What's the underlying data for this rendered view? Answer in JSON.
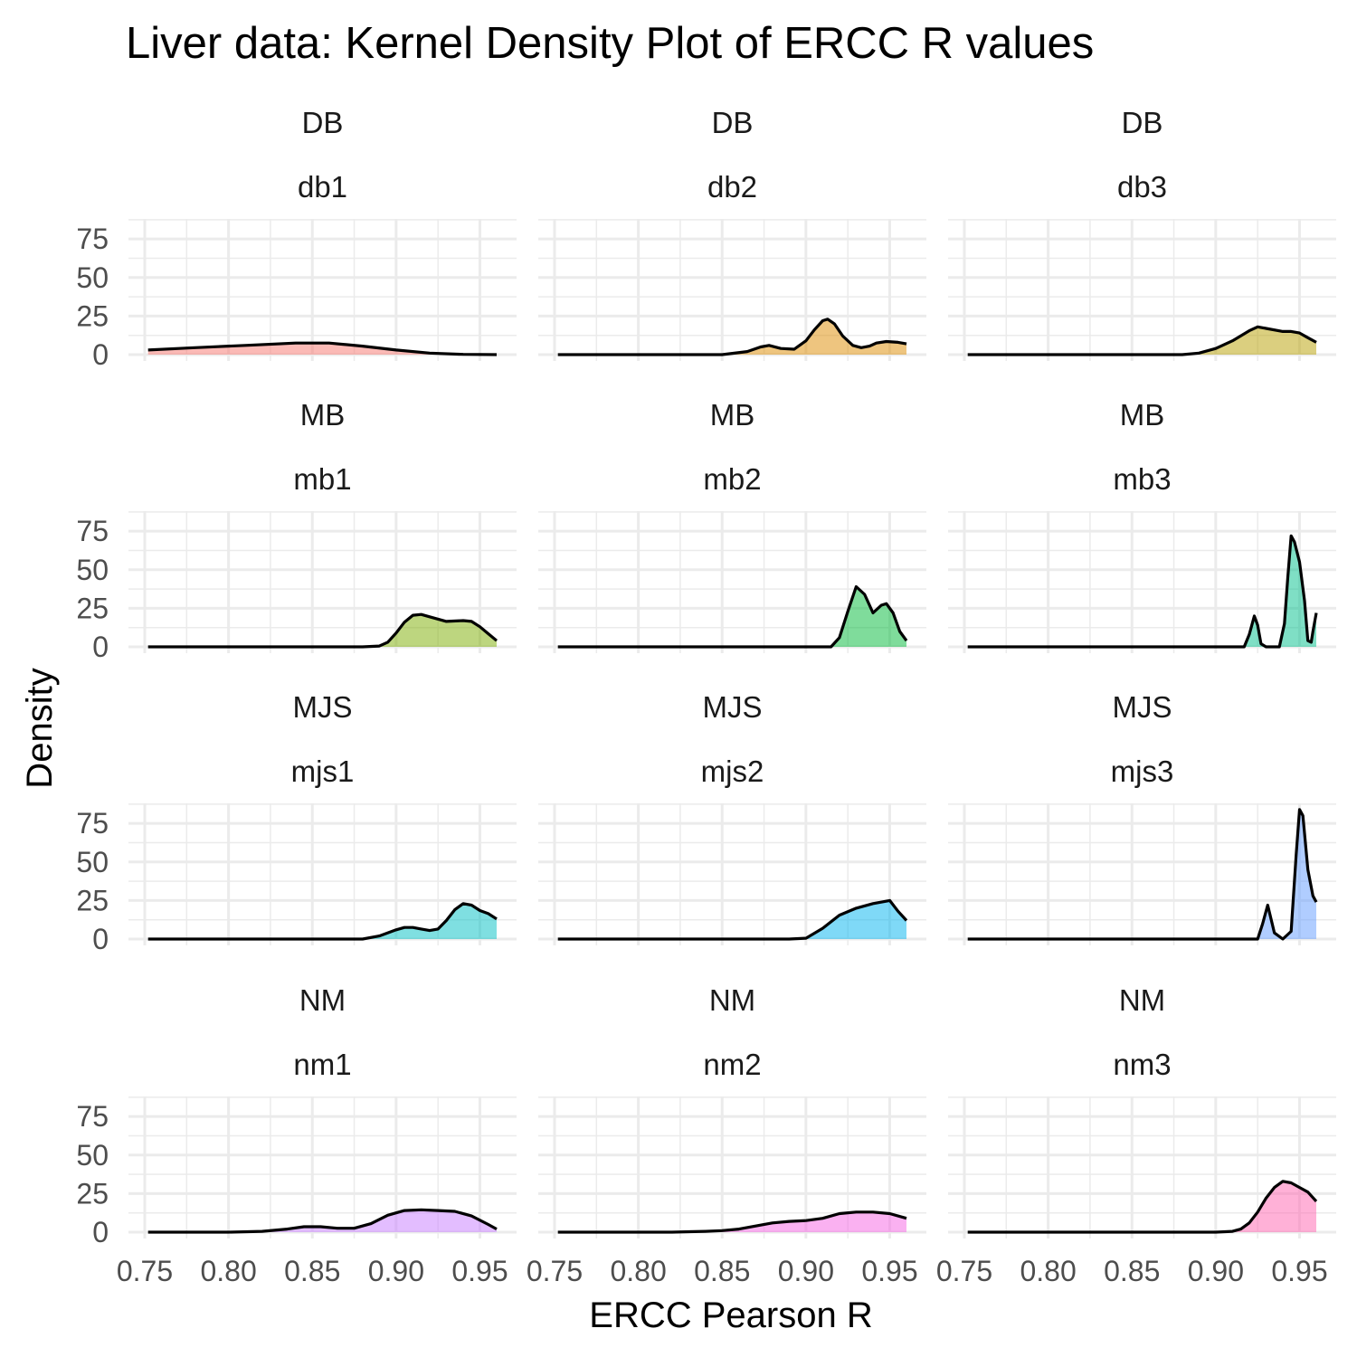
{
  "chart_data": {
    "type": "area",
    "title": "Liver data: Kernel Density Plot of ERCC R values",
    "xlabel": "ERCC Pearson R",
    "ylabel": "Density",
    "xlim": [
      0.75,
      0.96
    ],
    "ylim": [
      0,
      88
    ],
    "x_ticks": [
      0.75,
      0.8,
      0.85,
      0.9,
      0.95
    ],
    "x_tick_labels": [
      "0.75",
      "0.80",
      "0.85",
      "0.90",
      "0.95"
    ],
    "y_ticks": [
      0,
      25,
      50,
      75
    ],
    "y_tick_labels": [
      "0",
      "25",
      "50",
      "75"
    ],
    "grid": true,
    "layout": {
      "rows": 4,
      "cols": 3
    },
    "panels": [
      {
        "group": "DB",
        "sample": "db1",
        "color": "#F8766D",
        "x": [
          0.752,
          0.78,
          0.81,
          0.84,
          0.86,
          0.88,
          0.9,
          0.92,
          0.94,
          0.96
        ],
        "y": [
          3,
          4.5,
          6,
          7.5,
          7.5,
          5.5,
          3,
          1,
          0.2,
          0
        ]
      },
      {
        "group": "DB",
        "sample": "db2",
        "color": "#DE8C00",
        "x": [
          0.752,
          0.8,
          0.85,
          0.865,
          0.873,
          0.878,
          0.885,
          0.893,
          0.9,
          0.905,
          0.91,
          0.913,
          0.917,
          0.922,
          0.928,
          0.933,
          0.938,
          0.942,
          0.948,
          0.955,
          0.96
        ],
        "y": [
          0,
          0,
          0,
          2,
          5,
          6,
          4,
          3.5,
          9,
          16,
          22,
          23,
          20,
          12,
          6,
          4.5,
          5.5,
          7.5,
          8.5,
          8,
          7
        ]
      },
      {
        "group": "DB",
        "sample": "db3",
        "color": "#B79F00",
        "x": [
          0.752,
          0.85,
          0.88,
          0.89,
          0.9,
          0.91,
          0.92,
          0.925,
          0.93,
          0.94,
          0.945,
          0.95,
          0.955,
          0.96
        ],
        "y": [
          0,
          0,
          0,
          1,
          4,
          9,
          15.5,
          18,
          17,
          15,
          15,
          14,
          11,
          8
        ]
      },
      {
        "group": "MB",
        "sample": "mb1",
        "color": "#7CAE00",
        "x": [
          0.752,
          0.85,
          0.88,
          0.89,
          0.895,
          0.9,
          0.905,
          0.91,
          0.915,
          0.92,
          0.93,
          0.94,
          0.945,
          0.95,
          0.955,
          0.96
        ],
        "y": [
          0,
          0,
          0,
          0.5,
          3,
          9,
          16,
          20.5,
          21,
          19.5,
          16.5,
          17,
          16.5,
          13,
          8.5,
          4
        ]
      },
      {
        "group": "MB",
        "sample": "mb2",
        "color": "#00BA38",
        "x": [
          0.752,
          0.85,
          0.915,
          0.92,
          0.925,
          0.93,
          0.935,
          0.94,
          0.945,
          0.948,
          0.952,
          0.956,
          0.96
        ],
        "y": [
          0,
          0,
          0,
          6,
          23,
          39,
          34,
          22,
          27,
          28,
          22,
          10,
          4
        ]
      },
      {
        "group": "MB",
        "sample": "mb3",
        "color": "#00C08B",
        "x": [
          0.752,
          0.9,
          0.917,
          0.92,
          0.923,
          0.925,
          0.927,
          0.93,
          0.938,
          0.941,
          0.943,
          0.945,
          0.947,
          0.95,
          0.953,
          0.955,
          0.957,
          0.958,
          0.96
        ],
        "y": [
          0,
          0,
          0,
          8,
          20,
          14,
          2,
          0,
          0,
          15,
          45,
          72,
          68,
          55,
          30,
          4,
          3,
          10,
          22
        ]
      },
      {
        "group": "MJS",
        "sample": "mjs1",
        "color": "#00BFC4",
        "x": [
          0.752,
          0.85,
          0.88,
          0.89,
          0.9,
          0.905,
          0.91,
          0.915,
          0.92,
          0.925,
          0.93,
          0.935,
          0.94,
          0.945,
          0.95,
          0.955,
          0.96
        ],
        "y": [
          0,
          0,
          0,
          2,
          6,
          7.5,
          7.5,
          6.5,
          5.5,
          6.5,
          12,
          19,
          23,
          22,
          18.5,
          16.5,
          13
        ]
      },
      {
        "group": "MJS",
        "sample": "mjs2",
        "color": "#00B4F0",
        "x": [
          0.752,
          0.85,
          0.89,
          0.9,
          0.91,
          0.92,
          0.93,
          0.94,
          0.95,
          0.955,
          0.96
        ],
        "y": [
          0,
          0,
          0,
          0.5,
          7,
          15.5,
          20,
          23,
          25,
          18,
          12
        ]
      },
      {
        "group": "MJS",
        "sample": "mjs3",
        "color": "#619CFF",
        "x": [
          0.752,
          0.9,
          0.925,
          0.928,
          0.931,
          0.935,
          0.94,
          0.945,
          0.948,
          0.95,
          0.952,
          0.955,
          0.958,
          0.96
        ],
        "y": [
          0,
          0,
          0,
          10,
          22,
          4,
          0,
          5,
          55,
          84,
          80,
          45,
          28,
          24
        ]
      },
      {
        "group": "NM",
        "sample": "nm1",
        "color": "#C77CFF",
        "x": [
          0.752,
          0.8,
          0.82,
          0.835,
          0.845,
          0.855,
          0.865,
          0.875,
          0.885,
          0.895,
          0.905,
          0.915,
          0.925,
          0.935,
          0.945,
          0.955,
          0.96
        ],
        "y": [
          0,
          0,
          0.5,
          2,
          3.5,
          3.5,
          2.5,
          2.5,
          5.5,
          11,
          14,
          14.5,
          14,
          13.5,
          10.5,
          5,
          2
        ]
      },
      {
        "group": "NM",
        "sample": "nm2",
        "color": "#F564E3",
        "x": [
          0.752,
          0.82,
          0.84,
          0.85,
          0.86,
          0.87,
          0.88,
          0.89,
          0.9,
          0.91,
          0.92,
          0.93,
          0.94,
          0.95,
          0.96
        ],
        "y": [
          0,
          0,
          0.5,
          1,
          2,
          4,
          6,
          7,
          7.5,
          9,
          12,
          13,
          13,
          12,
          9
        ]
      },
      {
        "group": "NM",
        "sample": "nm3",
        "color": "#FF64B0",
        "x": [
          0.752,
          0.9,
          0.91,
          0.915,
          0.92,
          0.925,
          0.93,
          0.935,
          0.94,
          0.945,
          0.95,
          0.955,
          0.96
        ],
        "y": [
          0,
          0,
          0.5,
          2,
          6,
          13,
          22,
          29,
          33,
          32,
          29,
          26,
          20
        ]
      }
    ]
  }
}
